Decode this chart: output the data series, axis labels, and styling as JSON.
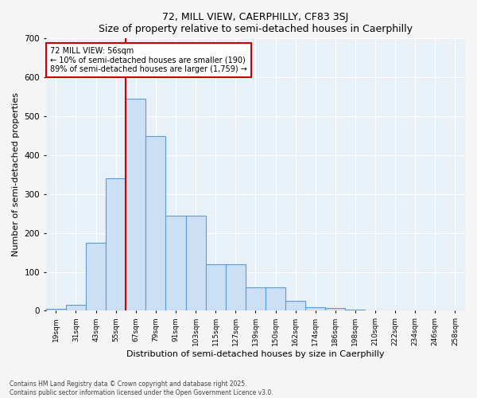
{
  "title": "72, MILL VIEW, CAERPHILLY, CF83 3SJ",
  "subtitle": "Size of property relative to semi-detached houses in Caerphilly",
  "xlabel": "Distribution of semi-detached houses by size in Caerphilly",
  "ylabel": "Number of semi-detached properties",
  "categories": [
    "19sqm",
    "31sqm",
    "43sqm",
    "55sqm",
    "67sqm",
    "79sqm",
    "91sqm",
    "103sqm",
    "115sqm",
    "127sqm",
    "139sqm",
    "150sqm",
    "162sqm",
    "174sqm",
    "186sqm",
    "198sqm",
    "210sqm",
    "222sqm",
    "234sqm",
    "246sqm",
    "258sqm"
  ],
  "values": [
    5,
    15,
    175,
    340,
    545,
    450,
    245,
    245,
    120,
    120,
    60,
    60,
    25,
    10,
    8,
    2,
    1,
    0,
    0,
    0,
    0
  ],
  "bar_color": "#cce0f5",
  "bar_edge_color": "#5b9bd5",
  "vline_x_index": 3.5,
  "vline_color": "#cc0000",
  "annotation_title": "72 MILL VIEW: 56sqm",
  "annotation_line1": "← 10% of semi-detached houses are smaller (190)",
  "annotation_line2": "89% of semi-detached houses are larger (1,759) →",
  "annotation_box_color": "#ffffff",
  "annotation_box_edge": "#cc0000",
  "ylim": [
    0,
    700
  ],
  "yticks": [
    0,
    100,
    200,
    300,
    400,
    500,
    600,
    700
  ],
  "footer_line1": "Contains HM Land Registry data © Crown copyright and database right 2025.",
  "footer_line2": "Contains public sector information licensed under the Open Government Licence v3.0.",
  "bg_color": "#e8f0f8",
  "fig_bg_color": "#f5f5f5"
}
